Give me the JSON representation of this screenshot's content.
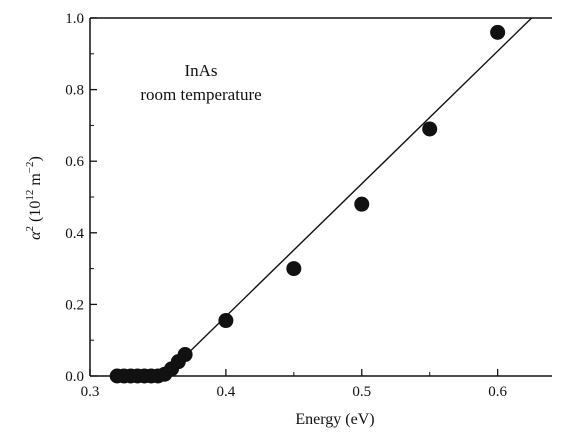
{
  "chart_data": {
    "type": "scatter",
    "title": "",
    "xlabel": "Energy (eV)",
    "ylabel": "α² (10¹² m⁻²)",
    "ylabel_parts": {
      "symbol": "α",
      "symbol_sup": "2",
      "unit_open": "(10",
      "unit_exp": "12",
      "unit_mid": " m",
      "unit_exp2": "−2",
      "unit_close": ")"
    },
    "xlim": [
      0.3,
      0.64
    ],
    "ylim": [
      0.0,
      1.0
    ],
    "x_ticks": [
      0.3,
      0.4,
      0.5,
      0.6
    ],
    "x_tick_labels": [
      "0.3",
      "0.4",
      "0.5",
      "0.6"
    ],
    "y_ticks": [
      0.0,
      0.2,
      0.4,
      0.6,
      0.8,
      1.0
    ],
    "y_tick_labels": [
      "0.0",
      "0.2",
      "0.4",
      "0.6",
      "0.8",
      "1.0"
    ],
    "grid": false,
    "annotations": [
      "InAs",
      "room temperature"
    ],
    "series": [
      {
        "kind": "points",
        "x": [
          0.32,
          0.325,
          0.33,
          0.335,
          0.34,
          0.345,
          0.35,
          0.355,
          0.36,
          0.365,
          0.37,
          0.4,
          0.45,
          0.5,
          0.55,
          0.6
        ],
        "y": [
          0.0,
          0.0,
          0.0,
          0.0,
          0.0,
          0.0,
          0.0,
          0.005,
          0.02,
          0.04,
          0.06,
          0.155,
          0.3,
          0.48,
          0.69,
          0.96
        ]
      },
      {
        "kind": "fit-line",
        "x": [
          0.355,
          0.625
        ],
        "y": [
          0.0,
          1.0
        ]
      }
    ]
  }
}
